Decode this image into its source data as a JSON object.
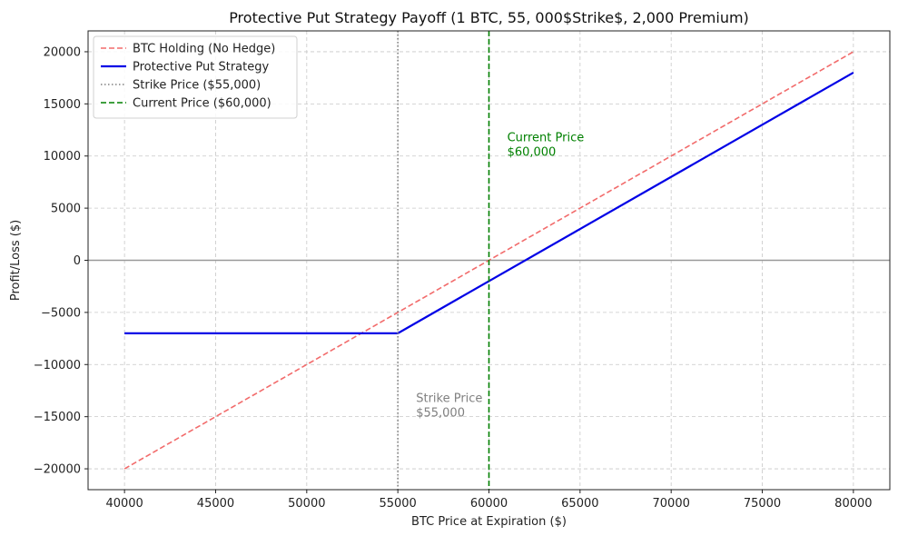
{
  "chart_data": {
    "type": "line",
    "title": "Protective Put Strategy Payoff (1 BTC, 55, 000$Strike$, 2,000 Premium)",
    "xlabel": "BTC Price at Expiration ($)",
    "ylabel": "Profit/Loss ($)",
    "xlim": [
      38000,
      82000
    ],
    "ylim": [
      -22000,
      22000
    ],
    "xticks": [
      40000,
      45000,
      50000,
      55000,
      60000,
      65000,
      70000,
      75000,
      80000
    ],
    "yticks": [
      -20000,
      -15000,
      -10000,
      -5000,
      0,
      5000,
      10000,
      15000,
      20000
    ],
    "grid": true,
    "legend_position": "top-left",
    "series": [
      {
        "name": "BTC Holding (No Hedge)",
        "color": "#f26b6b",
        "style": "dashed",
        "x": [
          40000,
          80000
        ],
        "y": [
          -20000,
          20000
        ]
      },
      {
        "name": "Protective Put Strategy",
        "color": "#0000e6",
        "style": "solid",
        "x": [
          40000,
          55000,
          80000
        ],
        "y": [
          -7000,
          -7000,
          18000
        ]
      }
    ],
    "vlines": [
      {
        "name": "Strike Price ($55,000)",
        "x": 55000,
        "color": "#808080",
        "style": "dotted"
      },
      {
        "name": "Current Price ($60,000)",
        "x": 60000,
        "color": "#008000",
        "style": "dashed"
      }
    ],
    "hline": {
      "y": 0,
      "color": "#999999"
    },
    "annotations": [
      {
        "lines": [
          "Current Price",
          "$60,000"
        ],
        "x": 61000,
        "y": 10000,
        "color": "#008000"
      },
      {
        "lines": [
          "Strike Price",
          "$55,000"
        ],
        "x": 56000,
        "y": -15000,
        "color": "#808080"
      }
    ]
  }
}
